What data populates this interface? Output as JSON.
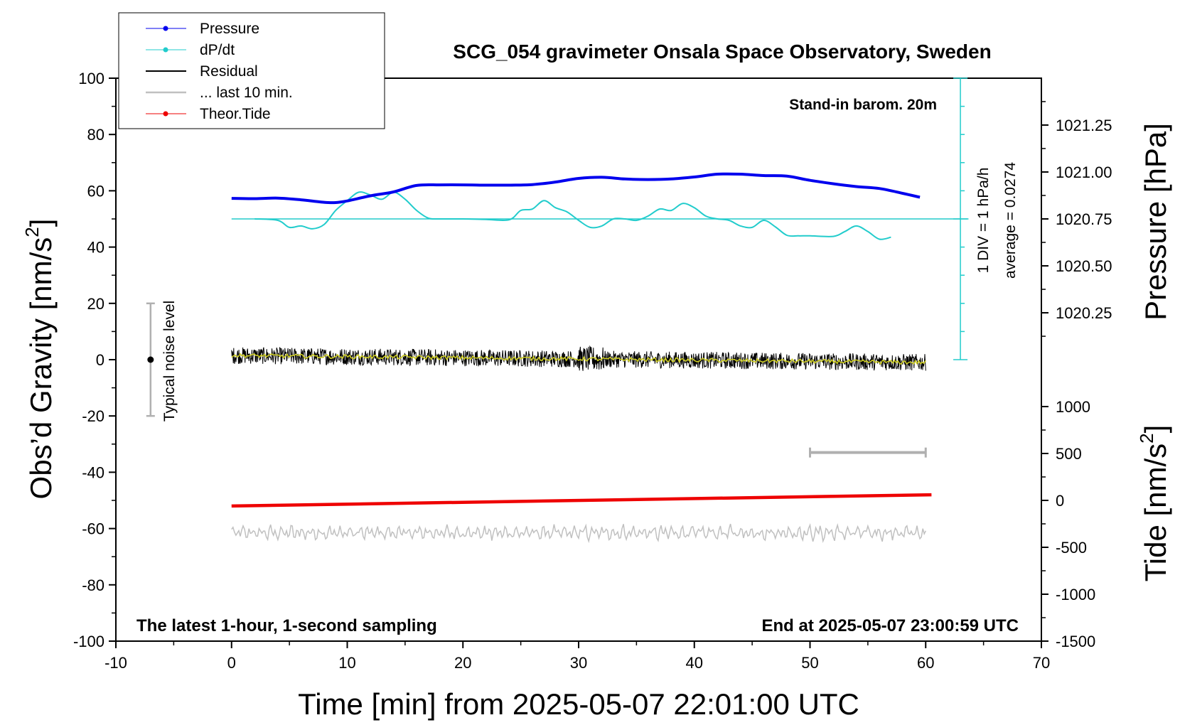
{
  "colors": {
    "pressure": "#0000ee",
    "dpdt": "#22cccc",
    "residual": "#000000",
    "last10": "#c0c0c0",
    "theor_tide": "#ee0000",
    "smoothed_residual": "#cccc22",
    "noise_bar": "#b0b0b0"
  },
  "chart_data": {
    "type": "line",
    "title": "SCG_054 gravimeter Onsala Space Observatory, Sweden",
    "xlabel": "Time [min] from 2025-05-07 22:01:00 UTC",
    "ylabel_left": "Obs’d Gravity [nm/s2]",
    "ylabel_left_main": "Obs’d Gravity [nm/s",
    "ylabel_left_sup": "2",
    "ylabel_left_end": "]",
    "ylabel_right_top": "Pressure [hPa]",
    "ylabel_right_bottom": "Tide [nm/s2]",
    "ylabel_right_bottom_main": "Tide [nm/s",
    "ylabel_right_bottom_sup": "2",
    "ylabel_right_bottom_end": "]",
    "xlim": [
      -10,
      70
    ],
    "ylim_left": [
      -100,
      100
    ],
    "x_ticks": [
      "-10",
      "0",
      "10",
      "20",
      "30",
      "40",
      "50",
      "60",
      "70"
    ],
    "x_tick_values": [
      -10,
      0,
      10,
      20,
      30,
      40,
      50,
      60,
      70
    ],
    "y_left_ticks": [
      "100",
      "80",
      "60",
      "40",
      "20",
      "0",
      "-20",
      "-40",
      "-60",
      "-80",
      "-100"
    ],
    "y_left_tick_values": [
      100,
      80,
      60,
      40,
      20,
      0,
      -20,
      -40,
      -60,
      -80,
      -100
    ],
    "pressure_axis": {
      "ticks": [
        "1021.25",
        "1021.00",
        "1020.75",
        "1020.50",
        "1020.25"
      ],
      "tick_values": [
        1021.25,
        1021.0,
        1020.75,
        1020.5,
        1020.25
      ],
      "ref_hpa": 1020.75,
      "ref_gravity": 50,
      "gravity_per_hpa": 66.7
    },
    "tide_axis": {
      "ticks": [
        "1000",
        "500",
        "0",
        "-500",
        "-1000",
        "-1500"
      ],
      "tick_values": [
        1000,
        500,
        0,
        -500,
        -1000,
        -1500
      ],
      "ref_tide": 0,
      "ref_gravity": -50,
      "gravity_per_tide": 0.03333
    },
    "legend": {
      "placement": "top-left",
      "entries": [
        "Pressure",
        "dP/dt",
        "Residual",
        "... last 10 min.",
        "Theor.Tide"
      ]
    },
    "annotations": {
      "top_right": "Stand-in barom. 20m",
      "bottom_left": "The latest 1-hour, 1-second sampling",
      "bottom_right": "End at 2025-05-07 23:00:59 UTC",
      "dpdt_scale": "1 DIV = 1 hPa/h",
      "dpdt_average": "average = 0.0274",
      "noise_label": "Typical noise level"
    },
    "dpdt_baseline": 50,
    "dpdt_scale_bar": {
      "x": 63,
      "y_range": [
        0,
        100
      ]
    },
    "last10_bar": {
      "x_range": [
        50,
        60
      ],
      "y": -33
    },
    "noise_bar": {
      "x": -7,
      "y_range": [
        -20,
        20
      ],
      "center": 0
    },
    "series": [
      {
        "name": "Pressure",
        "x": [
          0,
          2,
          4,
          6,
          8,
          9,
          10,
          12,
          14,
          16,
          18,
          20,
          22,
          24,
          26,
          28,
          30,
          32,
          34,
          36,
          38,
          40,
          42,
          44,
          46,
          48,
          50,
          52,
          54,
          56,
          58,
          59.5
        ],
        "values": [
          57.3,
          57.2,
          57.4,
          56.8,
          55.9,
          55.8,
          56.4,
          58.2,
          59.6,
          61.9,
          62.1,
          62.1,
          62.0,
          62.0,
          62.2,
          63.1,
          64.4,
          64.8,
          64.2,
          64.0,
          64.2,
          64.9,
          65.9,
          65.9,
          65.4,
          65.2,
          63.7,
          62.5,
          61.5,
          60.8,
          59.1,
          57.7
        ]
      },
      {
        "name": "dP/dt",
        "x": [
          2,
          4,
          5,
          6,
          7,
          8,
          9,
          10,
          11,
          12,
          13,
          14,
          15,
          16,
          17,
          18,
          20,
          22,
          24,
          25,
          26,
          27,
          28,
          29,
          30,
          31,
          32,
          33,
          34,
          35,
          36,
          37,
          38,
          39,
          40,
          41,
          42,
          43,
          44,
          45,
          46,
          47,
          48,
          49,
          50,
          52,
          53,
          54,
          55,
          56,
          57
        ],
        "values": [
          50,
          49.5,
          47,
          47.5,
          46.5,
          48,
          53,
          56.5,
          59.5,
          58.5,
          57,
          59.5,
          57,
          53,
          50.3,
          50,
          50,
          49.8,
          49.7,
          53,
          53.5,
          56.5,
          54,
          52.5,
          49.5,
          47,
          47.5,
          50,
          50,
          49.5,
          51,
          53.5,
          53,
          55.5,
          54,
          51,
          50,
          49.5,
          47.5,
          47,
          49.5,
          47.2,
          44.2,
          44,
          44,
          43.8,
          45.5,
          47.5,
          45.5,
          42.8,
          43.5
        ]
      },
      {
        "name": "Residual",
        "x_range": [
          0,
          60
        ],
        "center_start": 1.5,
        "center_end": -1.0,
        "amplitude": 3.0,
        "spike_x": 31,
        "spike_amp": 4.5
      },
      {
        "name": "Theor.Tide",
        "x": [
          0,
          60.5
        ],
        "values": [
          -52,
          -48
        ]
      },
      {
        "name": "... last 10 min.",
        "x_range": [
          0,
          60
        ],
        "center": -61.5,
        "amplitude": 2.2
      }
    ]
  }
}
